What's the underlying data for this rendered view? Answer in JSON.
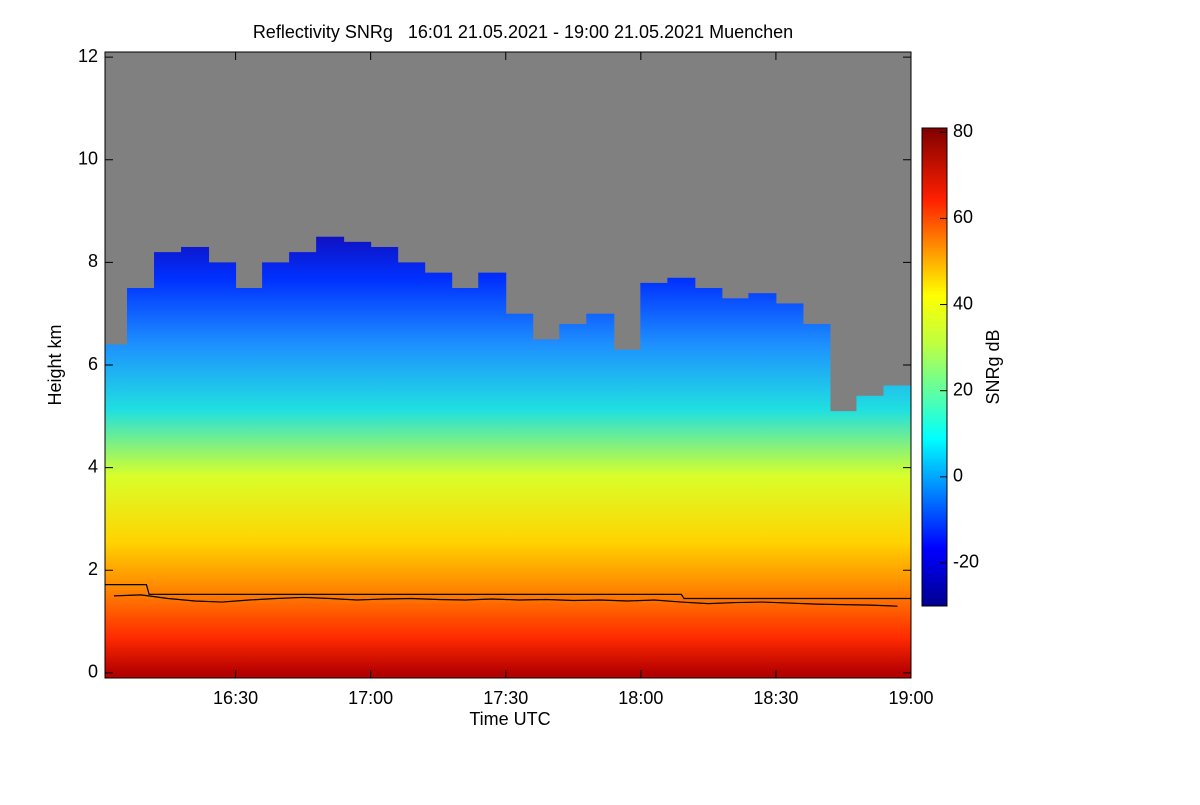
{
  "chart_data": {
    "type": "heatmap",
    "title": "Reflectivity SNRg   16:01 21.05.2021 - 19:00 21.05.2021 Muenchen",
    "xlabel": "Time UTC",
    "ylabel": "Height km",
    "colorbar_label": "SNRg dB",
    "xlim": [
      16.0167,
      19.0
    ],
    "xticks": [
      {
        "value": 16.5,
        "label": "16:30"
      },
      {
        "value": 17.0,
        "label": "17:00"
      },
      {
        "value": 17.5,
        "label": "17:30"
      },
      {
        "value": 18.0,
        "label": "18:00"
      },
      {
        "value": 18.5,
        "label": "18:30"
      },
      {
        "value": 19.0,
        "label": "19:00"
      }
    ],
    "ylim": [
      -0.1,
      12.1
    ],
    "yticks": [
      0,
      2,
      4,
      6,
      8,
      10,
      12
    ],
    "clim": [
      -30,
      81
    ],
    "cticks": [
      -20,
      0,
      20,
      40,
      60,
      80
    ],
    "background_color": "#808080",
    "x": [
      16.05,
      16.15,
      16.25,
      16.35,
      16.45,
      16.55,
      16.65,
      16.75,
      16.85,
      16.95,
      17.05,
      17.15,
      17.25,
      17.35,
      17.45,
      17.55,
      17.65,
      17.75,
      17.85,
      17.95,
      18.05,
      18.15,
      18.25,
      18.35,
      18.45,
      18.55,
      18.65,
      18.75,
      18.85,
      18.95
    ],
    "echo_top": [
      6.4,
      7.5,
      8.2,
      8.3,
      8.0,
      7.5,
      8.0,
      8.2,
      8.5,
      8.4,
      8.3,
      8.0,
      7.8,
      7.5,
      7.8,
      7.0,
      6.5,
      6.8,
      7.0,
      6.3,
      7.6,
      7.7,
      7.5,
      7.3,
      7.4,
      7.2,
      6.8,
      5.1,
      5.4,
      5.6
    ],
    "lines": [
      {
        "color": "#000000",
        "x": [
          16.0167,
          16.17,
          16.18,
          18.15,
          18.16,
          19.0
        ],
        "y": [
          1.72,
          1.72,
          1.53,
          1.53,
          1.45,
          1.45
        ]
      },
      {
        "color": "#000000",
        "x": [
          16.05,
          16.15,
          16.25,
          16.35,
          16.45,
          16.55,
          16.65,
          16.75,
          16.85,
          16.95,
          17.05,
          17.15,
          17.25,
          17.35,
          17.45,
          17.55,
          17.65,
          17.75,
          17.85,
          17.95,
          18.05,
          18.15,
          18.25,
          18.35,
          18.45,
          18.55,
          18.65,
          18.75,
          18.85,
          18.95
        ],
        "y": [
          1.5,
          1.52,
          1.45,
          1.4,
          1.38,
          1.42,
          1.45,
          1.47,
          1.45,
          1.42,
          1.44,
          1.45,
          1.43,
          1.42,
          1.44,
          1.42,
          1.43,
          1.41,
          1.42,
          1.4,
          1.42,
          1.38,
          1.35,
          1.37,
          1.38,
          1.36,
          1.34,
          1.33,
          1.32,
          1.3
        ]
      }
    ]
  }
}
